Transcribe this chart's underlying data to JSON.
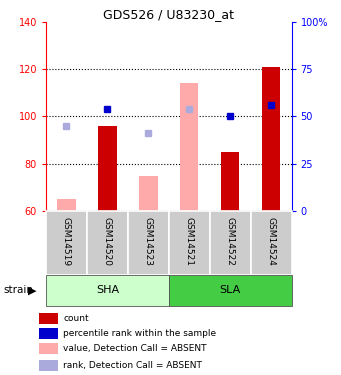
{
  "title": "GDS526 / U83230_at",
  "samples": [
    "GSM14519",
    "GSM14520",
    "GSM14523",
    "GSM14521",
    "GSM14522",
    "GSM14524"
  ],
  "ylim_left": [
    60,
    140
  ],
  "ylim_right": [
    0,
    100
  ],
  "yticks_left": [
    60,
    80,
    100,
    120,
    140
  ],
  "ytick_labels_right": [
    "0",
    "25",
    "50",
    "75",
    "100%"
  ],
  "yticks_right": [
    0,
    25,
    50,
    75,
    100
  ],
  "bar_values": [
    null,
    96,
    null,
    null,
    85,
    121
  ],
  "bar_color": "#cc0000",
  "absent_bar_values": [
    65,
    null,
    75,
    114,
    null,
    null
  ],
  "absent_bar_color": "#ffaaaa",
  "rank_dots": [
    null,
    103,
    null,
    null,
    100,
    105
  ],
  "rank_dot_color": "#0000cc",
  "absent_rank_dots": [
    96,
    null,
    93,
    103,
    null,
    null
  ],
  "absent_rank_dot_color": "#aaaadd",
  "dotted_lines": [
    80,
    100,
    120
  ],
  "bar_width": 0.45,
  "sha_color": "#ccffcc",
  "sla_color": "#44cc44",
  "legend_items": [
    {
      "color": "#cc0000",
      "label": "count"
    },
    {
      "color": "#0000cc",
      "label": "percentile rank within the sample"
    },
    {
      "color": "#ffaaaa",
      "label": "value, Detection Call = ABSENT"
    },
    {
      "color": "#aaaadd",
      "label": "rank, Detection Call = ABSENT"
    }
  ]
}
